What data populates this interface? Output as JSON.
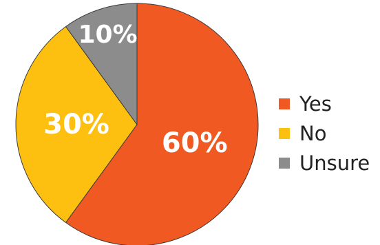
{
  "chart_data": {
    "type": "pie",
    "categories": [
      "Yes",
      "No",
      "Unsure"
    ],
    "values": [
      60,
      30,
      10
    ],
    "labels": [
      "60%",
      "30%",
      "10%"
    ],
    "colors": [
      "#f05a22",
      "#fdc010",
      "#8c8c8c"
    ],
    "legend": {
      "position": "right",
      "entries": [
        "Yes",
        "No",
        "Unsure"
      ]
    }
  }
}
